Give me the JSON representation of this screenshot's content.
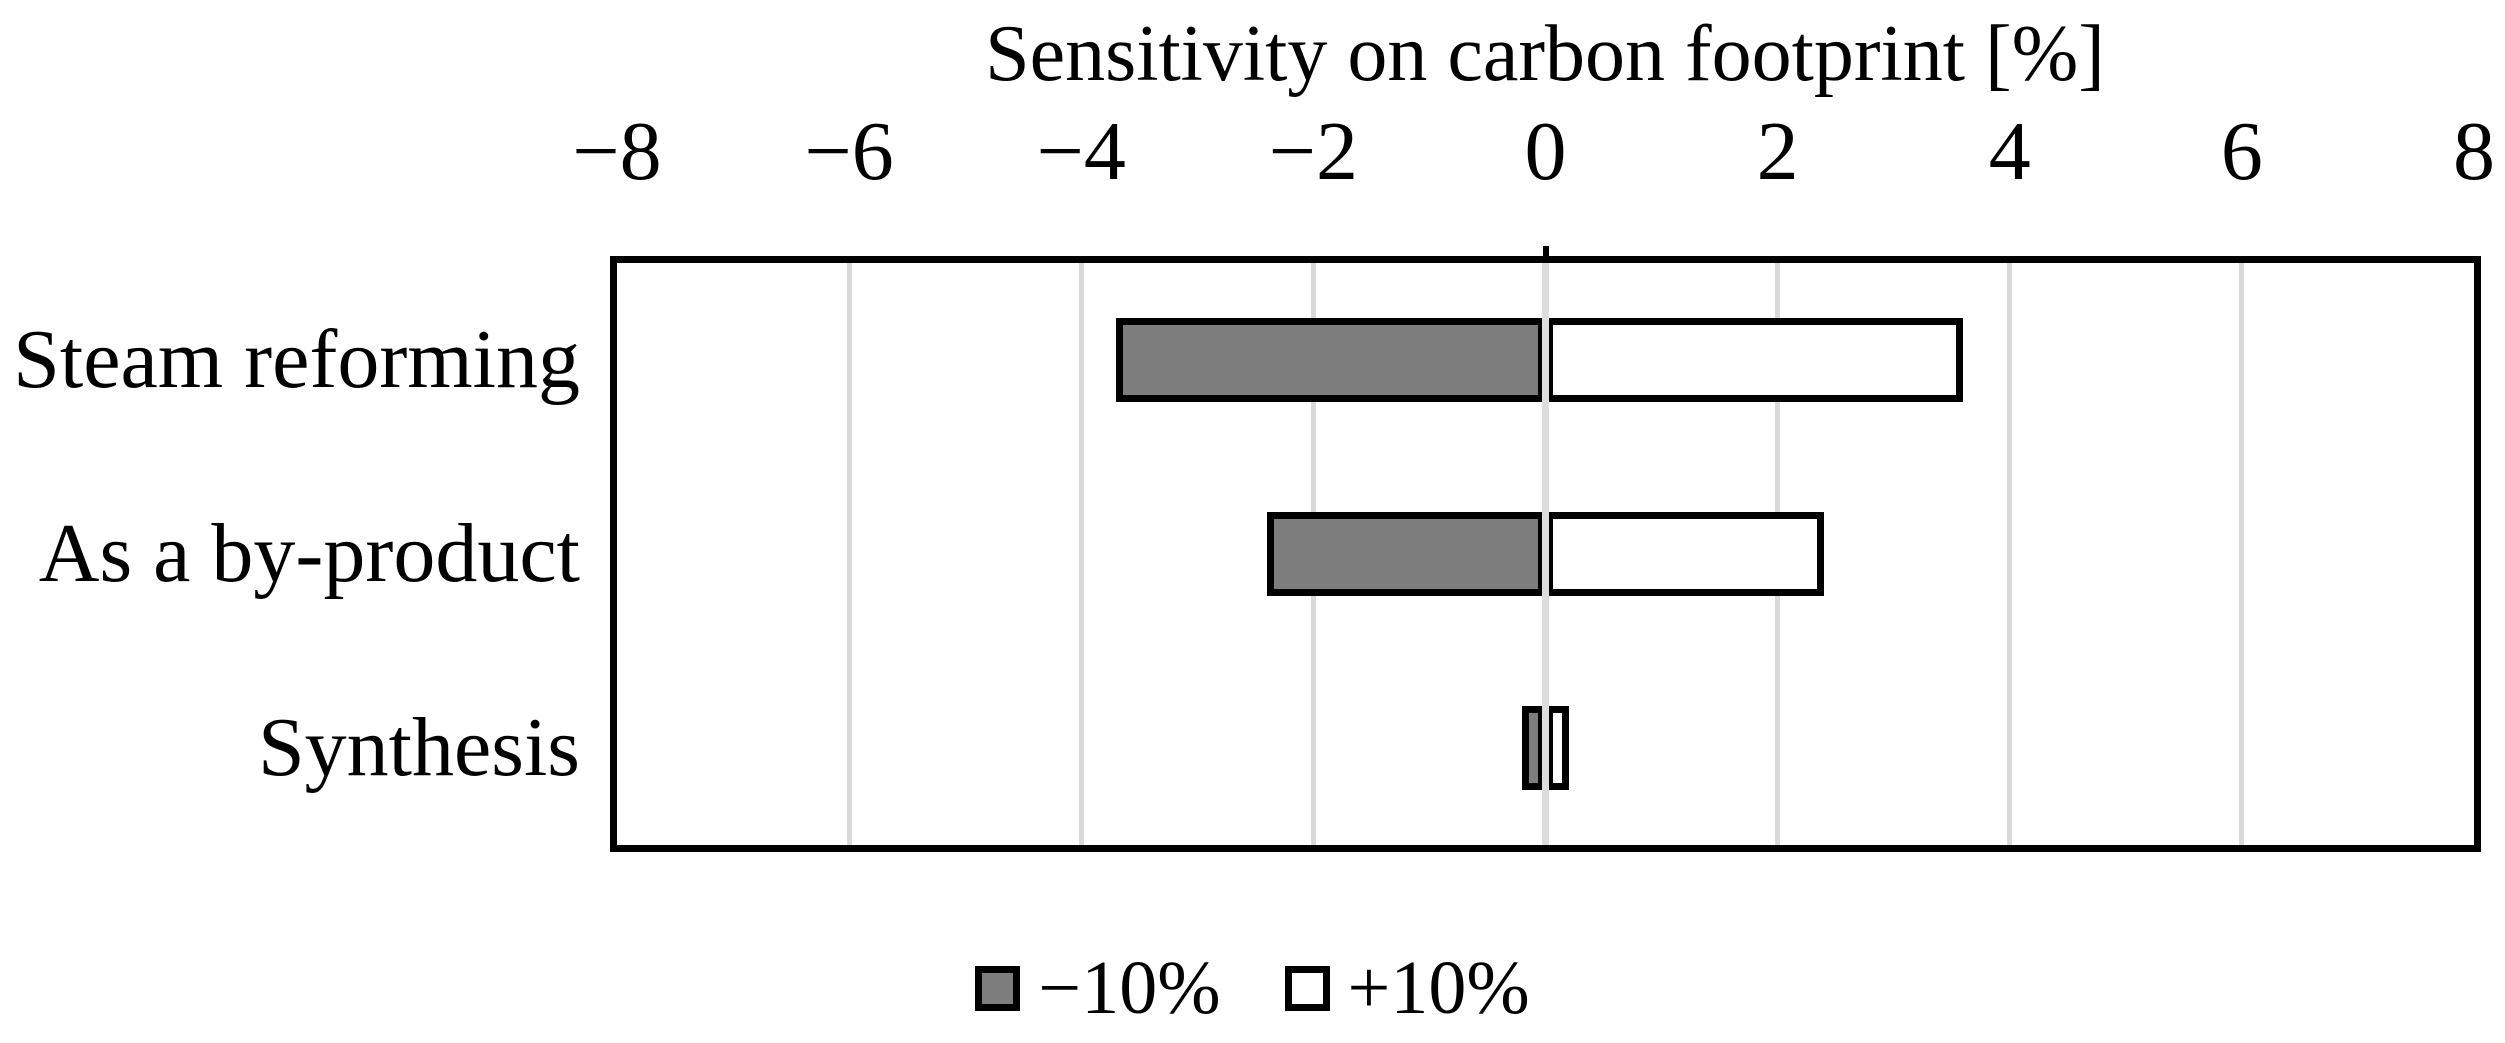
{
  "chart_data": {
    "type": "bar",
    "orientation": "horizontal",
    "title": "Sensitivity on carbon footprint [%]",
    "categories": [
      "Steam reforming",
      "As a by-product",
      "Synthesis"
    ],
    "series": [
      {
        "name": "−10%",
        "fill": "#7d7d7d",
        "values": [
          -3.7,
          -2.4,
          -0.2
        ]
      },
      {
        "name": "+10%",
        "fill": "#ffffff",
        "values": [
          3.6,
          2.4,
          0.2
        ]
      }
    ],
    "xlim": [
      -8,
      8
    ],
    "x_ticks": [
      -8,
      -6,
      -4,
      -2,
      0,
      2,
      4,
      6,
      8
    ],
    "x_tick_labels": [
      "−8",
      "−6",
      "−4",
      "−2",
      "0",
      "2",
      "4",
      "6",
      "8"
    ],
    "axis_position": "top",
    "grid": true,
    "gridline_color": "#d9d9d9",
    "bar_outline_color": "#000000",
    "legend_position": "bottom"
  }
}
